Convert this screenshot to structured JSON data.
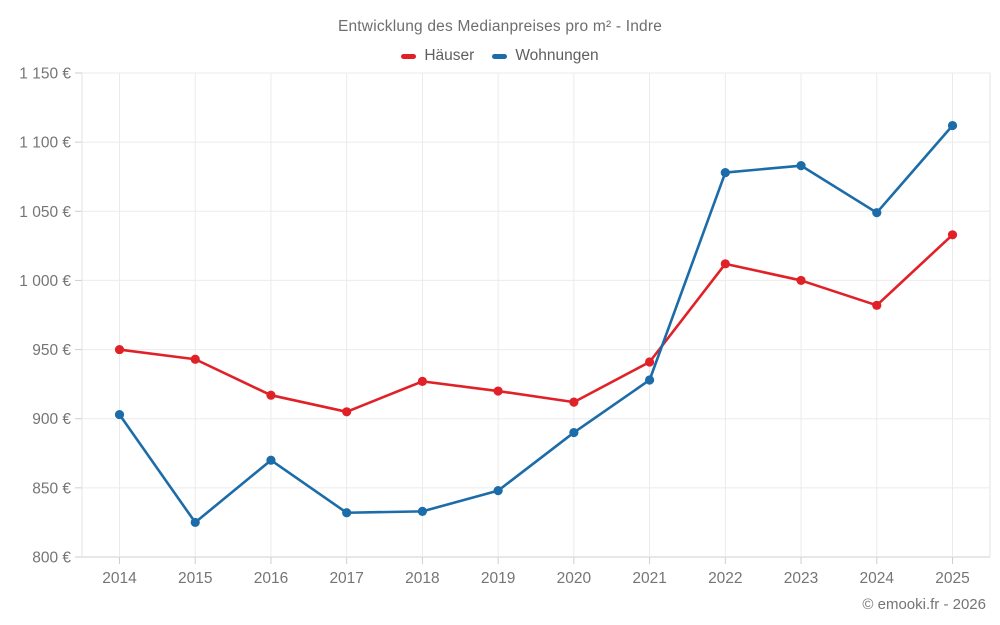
{
  "header": {
    "title": "Entwicklung des Medianpreises pro m² - Indre"
  },
  "legend": [
    {
      "label": "Häuser",
      "color": "#e02128"
    },
    {
      "label": "Wohnungen",
      "color": "#1b6ca8"
    }
  ],
  "footer": {
    "credit": "© emooki.fr - 2026"
  },
  "colors": {
    "grid": "#ebebeb",
    "axis": "#cfcfcf",
    "border": "#e3e3e3",
    "text": "#757575"
  },
  "chart_data": {
    "type": "line",
    "title": "Entwicklung des Medianpreises pro m² - Indre",
    "x": [
      "2014",
      "2015",
      "2016",
      "2017",
      "2018",
      "2019",
      "2020",
      "2021",
      "2022",
      "2023",
      "2024",
      "2025"
    ],
    "series": [
      {
        "name": "Häuser",
        "color": "#e02128",
        "values": [
          950,
          943,
          917,
          905,
          927,
          920,
          912,
          941,
          1012,
          1000,
          982,
          1033
        ]
      },
      {
        "name": "Wohnungen",
        "color": "#1b6ca8",
        "values": [
          903,
          825,
          870,
          832,
          833,
          848,
          890,
          928,
          1078,
          1083,
          1049,
          1112
        ]
      }
    ],
    "xlabel": "",
    "ylabel": "",
    "unit": "€",
    "ylim": [
      800,
      1150
    ],
    "y_ticks": [
      {
        "value": 800,
        "label": "800 €"
      },
      {
        "value": 850,
        "label": "850 €"
      },
      {
        "value": 900,
        "label": "900 €"
      },
      {
        "value": 950,
        "label": "950 €"
      },
      {
        "value": 1000,
        "label": "1 000 €"
      },
      {
        "value": 1050,
        "label": "1 050 €"
      },
      {
        "value": 1100,
        "label": "1 100 €"
      },
      {
        "value": 1150,
        "label": "1 150 €"
      }
    ],
    "grid": true,
    "markers": true,
    "legend_position": "top"
  }
}
